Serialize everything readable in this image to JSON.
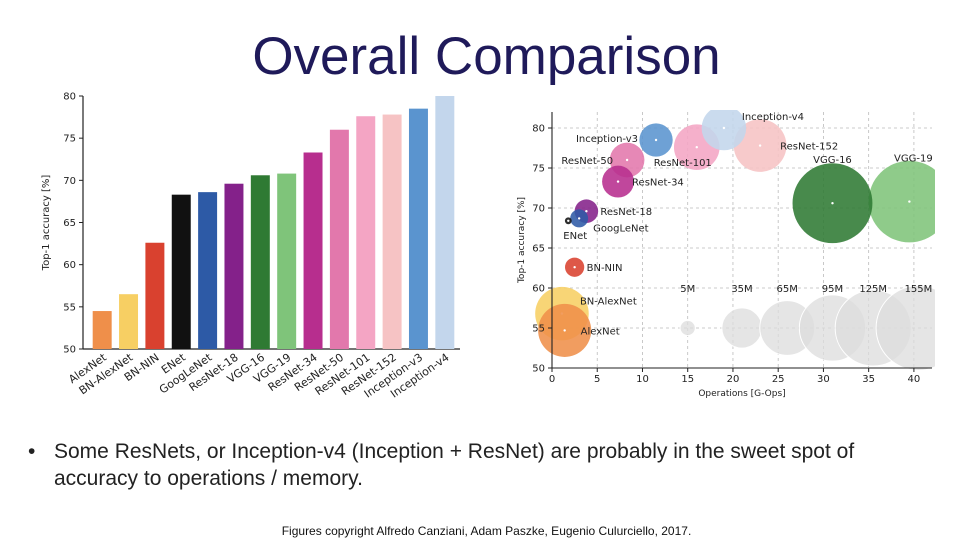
{
  "title": "Overall Comparison",
  "bullet": {
    "marker": "•",
    "text": "Some ResNets, or Inception-v4 (Inception + ResNet) are probably in the sweet spot of accuracy to operations / memory."
  },
  "credit": "Figures copyright Alfredo Canziani, Adam Paszke, Eugenio Culurciello, 2017.",
  "chart_data": [
    {
      "type": "bar",
      "title": "",
      "xlabel": "",
      "ylabel": "Top-1 accuracy [%]",
      "ylim": [
        50,
        80
      ],
      "yticks": [
        "50",
        "55",
        "60",
        "65",
        "70",
        "75",
        "80"
      ],
      "categories": [
        "AlexNet",
        "BN-AlexNet",
        "BN-NIN",
        "ENet",
        "GoogLeNet",
        "ResNet-18",
        "VGG-16",
        "VGG-19",
        "ResNet-34",
        "ResNet-50",
        "ResNet-101",
        "ResNet-152",
        "Inception-v3",
        "Inception-v4"
      ],
      "values": [
        54.5,
        56.5,
        62.6,
        68.3,
        68.6,
        69.6,
        70.6,
        70.8,
        73.3,
        76.0,
        77.6,
        77.8,
        78.5,
        80.0
      ],
      "colors": [
        "#ef8f4a",
        "#f7cf63",
        "#d9412f",
        "#111111",
        "#2d5aa6",
        "#84218a",
        "#2f7a33",
        "#7fc47a",
        "#b72e8e",
        "#e278ac",
        "#f4a5c4",
        "#f6c3c4",
        "#5a94cf",
        "#c3d6ec"
      ]
    },
    {
      "type": "scatter",
      "title": "",
      "xlabel": "Operations [G-Ops]",
      "ylabel": "Top-1 accuracy [%]",
      "xlim": [
        0,
        42
      ],
      "ylim": [
        50,
        82
      ],
      "xticks": [
        "0",
        "5",
        "10",
        "15",
        "20",
        "25",
        "30",
        "35",
        "40"
      ],
      "yticks": [
        "50",
        "55",
        "60",
        "65",
        "70",
        "75",
        "80"
      ],
      "points": [
        {
          "name": "AlexNet",
          "x": 1.4,
          "y": 54.7,
          "params_m": 61,
          "color": "#ef8f4a"
        },
        {
          "name": "BN-AlexNet",
          "x": 1.1,
          "y": 56.8,
          "params_m": 62,
          "color": "#f7cf63"
        },
        {
          "name": "BN-NIN",
          "x": 2.5,
          "y": 62.6,
          "params_m": 8,
          "color": "#d9412f"
        },
        {
          "name": "ENet",
          "x": 1.8,
          "y": 68.4,
          "params_m": 1,
          "color": "#111111"
        },
        {
          "name": "GoogLeNet",
          "x": 3.0,
          "y": 68.7,
          "params_m": 7,
          "color": "#2d5aa6"
        },
        {
          "name": "ResNet-18",
          "x": 3.8,
          "y": 69.6,
          "params_m": 12,
          "color": "#84218a"
        },
        {
          "name": "ResNet-34",
          "x": 7.3,
          "y": 73.3,
          "params_m": 22,
          "color": "#b72e8e"
        },
        {
          "name": "ResNet-50",
          "x": 8.3,
          "y": 76.0,
          "params_m": 26,
          "color": "#e278ac"
        },
        {
          "name": "Inception-v3",
          "x": 11.5,
          "y": 78.5,
          "params_m": 24,
          "color": "#5a94cf"
        },
        {
          "name": "ResNet-101",
          "x": 16.0,
          "y": 77.6,
          "params_m": 45,
          "color": "#f4a5c4"
        },
        {
          "name": "Inception-v4",
          "x": 19.0,
          "y": 80.0,
          "params_m": 43,
          "color": "#c3d6ec"
        },
        {
          "name": "ResNet-152",
          "x": 23.0,
          "y": 77.8,
          "params_m": 60,
          "color": "#f6c3c4"
        },
        {
          "name": "VGG-16",
          "x": 31.0,
          "y": 70.6,
          "params_m": 138,
          "color": "#2f7a33"
        },
        {
          "name": "VGG-19",
          "x": 39.5,
          "y": 70.8,
          "params_m": 144,
          "color": "#7fc47a"
        }
      ],
      "size_legend": [
        {
          "label": "5M",
          "x": 15,
          "params_m": 5
        },
        {
          "label": "35M",
          "x": 21,
          "params_m": 35
        },
        {
          "label": "65M",
          "x": 26,
          "params_m": 65
        },
        {
          "label": "95M",
          "x": 31,
          "params_m": 95
        },
        {
          "label": "125M",
          "x": 35.5,
          "params_m": 125
        },
        {
          "label": "155M",
          "x": 40.5,
          "params_m": 155
        }
      ],
      "size_legend_y": 55
    }
  ]
}
